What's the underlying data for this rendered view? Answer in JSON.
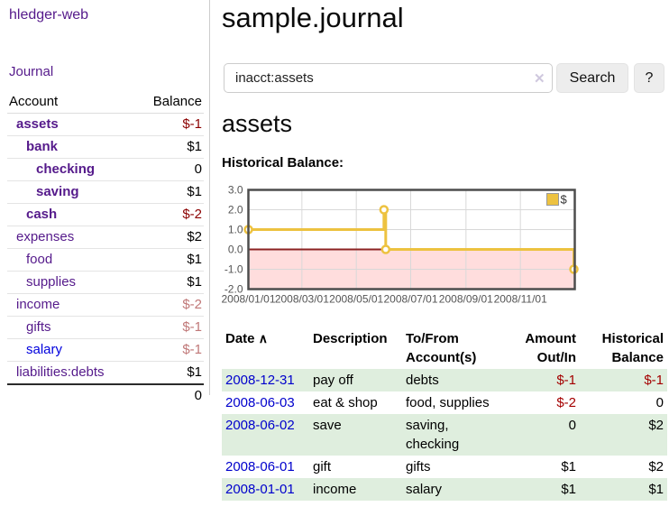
{
  "app": {
    "brand": "hledger-web",
    "nav": {
      "journal": "Journal"
    }
  },
  "accounts_panel": {
    "headers": {
      "account": "Account",
      "balance": "Balance"
    },
    "rows": [
      {
        "name": "assets",
        "balance": "$-1"
      },
      {
        "name": "bank",
        "balance": "$1"
      },
      {
        "name": "checking",
        "balance": "0"
      },
      {
        "name": "saving",
        "balance": "$1"
      },
      {
        "name": "cash",
        "balance": "$-2"
      },
      {
        "name": "expenses",
        "balance": "$2"
      },
      {
        "name": "food",
        "balance": "$1"
      },
      {
        "name": "supplies",
        "balance": "$1"
      },
      {
        "name": "income",
        "balance": "$-2"
      },
      {
        "name": "gifts",
        "balance": "$-1"
      },
      {
        "name": "salary",
        "balance": "$-1"
      },
      {
        "name": "liabilities:debts",
        "balance": "$1"
      }
    ],
    "total": "0"
  },
  "main": {
    "title": "sample.journal",
    "search": {
      "value": "inacct:assets",
      "clear_icon": "✕",
      "search_button": "Search",
      "help_button": "?"
    },
    "section_title": "assets",
    "chart_title": "Historical Balance:"
  },
  "chart_data": {
    "type": "line",
    "step": true,
    "title": "Historical Balance:",
    "x_range": [
      "2008-01-01",
      "2009-01-01"
    ],
    "ylim": [
      -2.0,
      3.0
    ],
    "yticks": [
      3.0,
      2.0,
      1.0,
      0.0,
      -1.0,
      -2.0
    ],
    "xticks": [
      {
        "date": "2008-01-01",
        "label": "2008/01/01"
      },
      {
        "date": "2008-03-01",
        "label": "2008/03/01"
      },
      {
        "date": "2008-05-01",
        "label": "2008/05/01"
      },
      {
        "date": "2008-07-01",
        "label": "2008/07/01"
      },
      {
        "date": "2008-09-01",
        "label": "2008/09/01"
      },
      {
        "date": "2008-11-01",
        "label": "2008/11/01"
      }
    ],
    "series": [
      {
        "name": "$",
        "points": [
          {
            "x": "2008-01-01",
            "y": 1
          },
          {
            "x": "2008-06-01",
            "y": 2
          },
          {
            "x": "2008-06-03",
            "y": 0
          },
          {
            "x": "2008-12-31",
            "y": -1
          }
        ]
      }
    ],
    "legend_position": "top-right",
    "grid": true,
    "colors": {
      "series": "#edc240",
      "negative_region": "#ffdddd",
      "zero_line": "#8b2323",
      "grid": "#d8d8d8",
      "border": "#4d4d4d",
      "axis_text": "#545454"
    }
  },
  "register": {
    "headers": {
      "date": "Date",
      "sort_icon": "∧",
      "description": "Description",
      "accounts": "To/From Account(s)",
      "amount": "Amount Out/In",
      "balance": "Historical Balance"
    },
    "rows": [
      {
        "date": "2008-12-31",
        "description": "pay off",
        "accounts": "debts",
        "amount": "$-1",
        "balance": "$-1"
      },
      {
        "date": "2008-06-03",
        "description": "eat & shop",
        "accounts": "food, supplies",
        "amount": "$-2",
        "balance": "0"
      },
      {
        "date": "2008-06-02",
        "description": "save",
        "accounts": "saving, checking",
        "amount": "0",
        "balance": "$2"
      },
      {
        "date": "2008-06-01",
        "description": "gift",
        "accounts": "gifts",
        "amount": "$1",
        "balance": "$2"
      },
      {
        "date": "2008-01-01",
        "description": "income",
        "accounts": "salary",
        "amount": "$1",
        "balance": "$1"
      }
    ]
  }
}
